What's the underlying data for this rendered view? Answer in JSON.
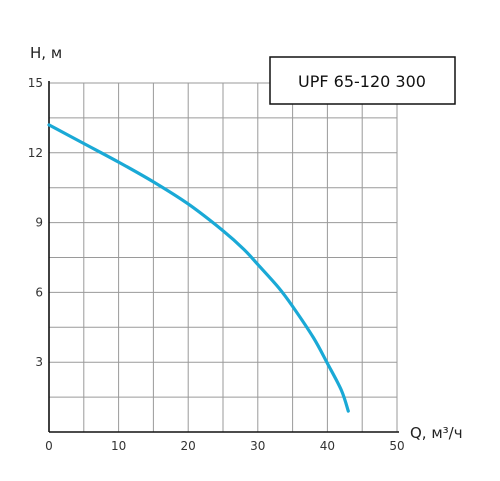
{
  "chart_data": {
    "type": "line",
    "title": "",
    "xlabel": "Q, м³/ч",
    "ylabel": "H, м",
    "xlim": [
      0,
      50
    ],
    "ylim": [
      0,
      15
    ],
    "x_ticks": [
      "0",
      "10",
      "20",
      "30",
      "40",
      "50"
    ],
    "y_ticks": [
      "3",
      "6",
      "9",
      "12",
      "15"
    ],
    "grid": true,
    "legend_placement": "top-right",
    "series": [
      {
        "name": "UPF 65-120 300",
        "color": "#1aa9d6",
        "x": [
          0,
          5,
          10,
          15,
          20,
          25,
          28,
          30,
          33,
          35,
          38,
          40,
          42,
          43
        ],
        "y": [
          13.2,
          12.4,
          11.6,
          10.75,
          9.8,
          8.65,
          7.85,
          7.2,
          6.2,
          5.4,
          4.05,
          2.95,
          1.8,
          0.9
        ]
      }
    ]
  },
  "colors": {
    "grid": "#9a9a9a",
    "axis": "#111111"
  }
}
